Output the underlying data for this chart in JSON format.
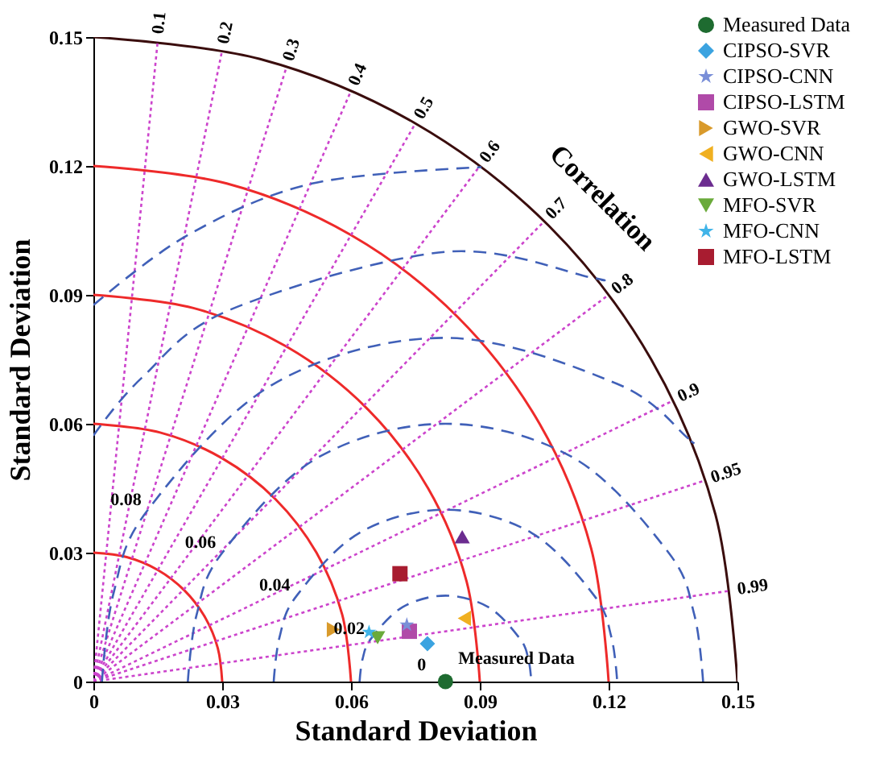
{
  "chart_data": {
    "type": "scatter",
    "xlabel": "Standard Deviation",
    "ylabel": "Standard Deviation",
    "xlim": [
      0,
      0.15
    ],
    "ylim": [
      0,
      0.15
    ],
    "xticks": [
      0,
      0.03,
      0.06,
      0.09,
      0.12,
      0.15
    ],
    "yticks": [
      0,
      0.03,
      0.06,
      0.09,
      0.12,
      0.15
    ],
    "legend": "top right",
    "series": [
      {
        "type": "line",
        "color": "#ee2a2a",
        "line_style": "solid",
        "x": [
          0,
          0.00776,
          0.015,
          0.02121,
          0.02598,
          0.02898,
          0.03
        ],
        "values": [
          0.03,
          0.02898,
          0.02598,
          0.02121,
          0.015,
          0.00776,
          0
        ]
      },
      {
        "type": "line",
        "color": "#ee2a2a",
        "line_style": "solid",
        "x": [
          0,
          0.01553,
          0.03,
          0.04243,
          0.05196,
          0.05796,
          0.06
        ],
        "values": [
          0.06,
          0.05796,
          0.05196,
          0.04243,
          0.03,
          0.01553,
          0
        ]
      },
      {
        "type": "line",
        "color": "#ee2a2a",
        "line_style": "solid",
        "x": [
          0,
          0.02329,
          0.045,
          0.06364,
          0.07794,
          0.08693,
          0.09
        ],
        "values": [
          0.09,
          0.08693,
          0.07794,
          0.06364,
          0.045,
          0.02329,
          0
        ]
      },
      {
        "type": "line",
        "color": "#ee2a2a",
        "line_style": "solid",
        "x": [
          0,
          0.03106,
          0.06,
          0.08485,
          0.10392,
          0.11591,
          0.12
        ],
        "values": [
          0.12,
          0.11591,
          0.10392,
          0.08485,
          0.06,
          0.03106,
          0
        ]
      },
      {
        "type": "line",
        "color": "#3a0d0d",
        "line_style": "solid",
        "x": [
          0,
          0.03882,
          0.075,
          0.10607,
          0.1299,
          0.14489,
          0.15
        ],
        "values": [
          0.15,
          0.14489,
          0.1299,
          0.10607,
          0.075,
          0.03882,
          0
        ]
      },
      {
        "type": "line",
        "color": "#cc44cc",
        "line_style": "dotted",
        "x": [
          0,
          0.015
        ],
        "values": [
          0,
          0.14925
        ]
      },
      {
        "type": "line",
        "color": "#cc44cc",
        "line_style": "dotted",
        "x": [
          0,
          0.03
        ],
        "values": [
          0,
          0.14697
        ]
      },
      {
        "type": "line",
        "color": "#cc44cc",
        "line_style": "dotted",
        "x": [
          0,
          0.045
        ],
        "values": [
          0,
          0.14309
        ]
      },
      {
        "type": "line",
        "color": "#cc44cc",
        "line_style": "dotted",
        "x": [
          0,
          0.06
        ],
        "values": [
          0,
          0.13748
        ]
      },
      {
        "type": "line",
        "color": "#cc44cc",
        "line_style": "dotted",
        "x": [
          0,
          0.075
        ],
        "values": [
          0,
          0.1299
        ]
      },
      {
        "type": "line",
        "color": "#cc44cc",
        "line_style": "dotted",
        "x": [
          0,
          0.09
        ],
        "values": [
          0,
          0.12
        ]
      },
      {
        "type": "line",
        "color": "#cc44cc",
        "line_style": "dotted",
        "x": [
          0,
          0.105
        ],
        "values": [
          0,
          0.10712
        ]
      },
      {
        "type": "line",
        "color": "#cc44cc",
        "line_style": "dotted",
        "x": [
          0,
          0.12
        ],
        "values": [
          0,
          0.09
        ]
      },
      {
        "type": "line",
        "color": "#cc44cc",
        "line_style": "dotted",
        "x": [
          0,
          0.135
        ],
        "values": [
          0,
          0.06538
        ]
      },
      {
        "type": "line",
        "color": "#cc44cc",
        "line_style": "dotted",
        "x": [
          0,
          0.1425
        ],
        "values": [
          0,
          0.04684
        ]
      },
      {
        "type": "line",
        "color": "#cc44cc",
        "line_style": "dotted",
        "x": [
          0,
          0.1485
        ],
        "values": [
          0,
          0.02116
        ]
      },
      {
        "type": "line",
        "color": "#4060b8",
        "line_style": "dashed",
        "x": [
          0.062,
          0.06268,
          0.06468,
          0.072,
          0.082,
          0.092,
          0.09932,
          0.10132,
          0.102
        ],
        "values": [
          0,
          0.00518,
          0.01,
          0.01732,
          0.02,
          0.01732,
          0.01,
          0.00518,
          0
        ]
      },
      {
        "type": "line",
        "color": "#4060b8",
        "line_style": "dashed",
        "x": [
          0.042,
          0.04336,
          0.04736,
          0.062,
          0.082,
          0.102,
          0.11664,
          0.12064,
          0.122
        ],
        "values": [
          0,
          0.01035,
          0.02,
          0.03464,
          0.04,
          0.03464,
          0.02,
          0.01035,
          0
        ]
      },
      {
        "type": "line",
        "color": "#4060b8",
        "line_style": "dashed",
        "x": [
          0.022,
          0.02404,
          0.03004,
          0.052,
          0.082,
          0.112,
          0.13396,
          0.13996,
          0.142
        ],
        "values": [
          0,
          0.01553,
          0.03,
          0.05196,
          0.06,
          0.05196,
          0.03,
          0.01553,
          0
        ]
      },
      {
        "type": "line",
        "color": "#4060b8",
        "line_style": "dashed",
        "x": [
          0.002,
          0.00473,
          0.01272,
          0.042,
          0.082,
          0.122,
          0.13857,
          0.13917
        ],
        "values": [
          0,
          0.02071,
          0.04,
          0.06928,
          0.08,
          0.06928,
          0.05657,
          0.05596
        ]
      },
      {
        "type": "line",
        "color": "#4060b8",
        "line_style": "dashed",
        "x": [
          0,
          0.01129,
          0.032,
          0.082,
          0.1162,
          0.11722
        ],
        "values": [
          0.05724,
          0.07071,
          0.0866,
          0.1,
          0.09397,
          0.09359
        ]
      },
      {
        "type": "line",
        "color": "#4060b8",
        "line_style": "dashed",
        "x": [
          0,
          0.022,
          0.05094,
          0.09039
        ],
        "values": [
          0.08761,
          0.10392,
          0.11591,
          0.11971
        ]
      },
      {
        "name": "Measured Data",
        "color": "#1e6b30",
        "marker": "circle",
        "x": [
          0.082
        ],
        "values": [
          0
        ]
      },
      {
        "name": "CIPSO-SVR",
        "color": "#3ba3e0",
        "marker": "diamond",
        "x": [
          0.0778
        ],
        "values": [
          0.0088
        ]
      },
      {
        "name": "CIPSO-CNN",
        "color": "#7a8fd8",
        "marker": "star",
        "x": [
          0.073
        ],
        "values": [
          0.0132
        ]
      },
      {
        "name": "CIPSO-LSTM",
        "color": "#b04aa8",
        "marker": "square",
        "x": [
          0.0736
        ],
        "values": [
          0.0117
        ]
      },
      {
        "name": "GWO-SVR",
        "color": "#d99a2b",
        "marker": "triangle-right",
        "x": [
          0.0559
        ],
        "values": [
          0.0121
        ]
      },
      {
        "name": "GWO-CNN",
        "color": "#f0b020",
        "marker": "triangle-left",
        "x": [
          0.0864
        ],
        "values": [
          0.0147
        ]
      },
      {
        "name": "GWO-LSTM",
        "color": "#6b2c8f",
        "marker": "triangle-up",
        "x": [
          0.0859
        ],
        "values": [
          0.0337
        ]
      },
      {
        "name": "MFO-SVR",
        "color": "#6aaa3a",
        "marker": "triangle-down",
        "x": [
          0.0662
        ],
        "values": [
          0.0102
        ]
      },
      {
        "name": "MFO-CNN",
        "color": "#40b4e8",
        "marker": "star",
        "x": [
          0.0642
        ],
        "values": [
          0.0115
        ]
      },
      {
        "name": "MFO-LSTM",
        "color": "#a81c30",
        "marker": "square",
        "x": [
          0.0714
        ],
        "values": [
          0.0251
        ]
      }
    ],
    "annotations": [
      "Correlation",
      {
        "text": "0.1",
        "x": 0.015,
        "y": 0.14925
      },
      {
        "text": "0.2",
        "x": 0.03,
        "y": 0.14697
      },
      {
        "text": "0.3",
        "x": 0.045,
        "y": 0.14309
      },
      {
        "text": "0.4",
        "x": 0.06,
        "y": 0.13748
      },
      {
        "text": "0.5",
        "x": 0.075,
        "y": 0.1299
      },
      {
        "text": "0.6",
        "x": 0.09,
        "y": 0.12
      },
      {
        "text": "0.7",
        "x": 0.105,
        "y": 0.10712
      },
      {
        "text": "0.8",
        "x": 0.12,
        "y": 0.09
      },
      {
        "text": "0.9",
        "x": 0.135,
        "y": 0.06538
      },
      {
        "text": "0.95",
        "x": 0.1425,
        "y": 0.04684
      },
      {
        "text": "0.99",
        "x": 0.1485,
        "y": 0.02116
      },
      {
        "text": "0.08",
        "x": 0.01272,
        "y": 0.04
      },
      {
        "text": "0.06",
        "x": 0.03004,
        "y": 0.03
      },
      {
        "text": "0.04",
        "x": 0.04736,
        "y": 0.02
      },
      {
        "text": "0.02",
        "x": 0.06468,
        "y": 0.01
      },
      {
        "text": "0",
        "x": 0.079,
        "y": 0.0015
      },
      {
        "text": "Measured Data",
        "x": 0.082,
        "y": 0
      }
    ]
  }
}
